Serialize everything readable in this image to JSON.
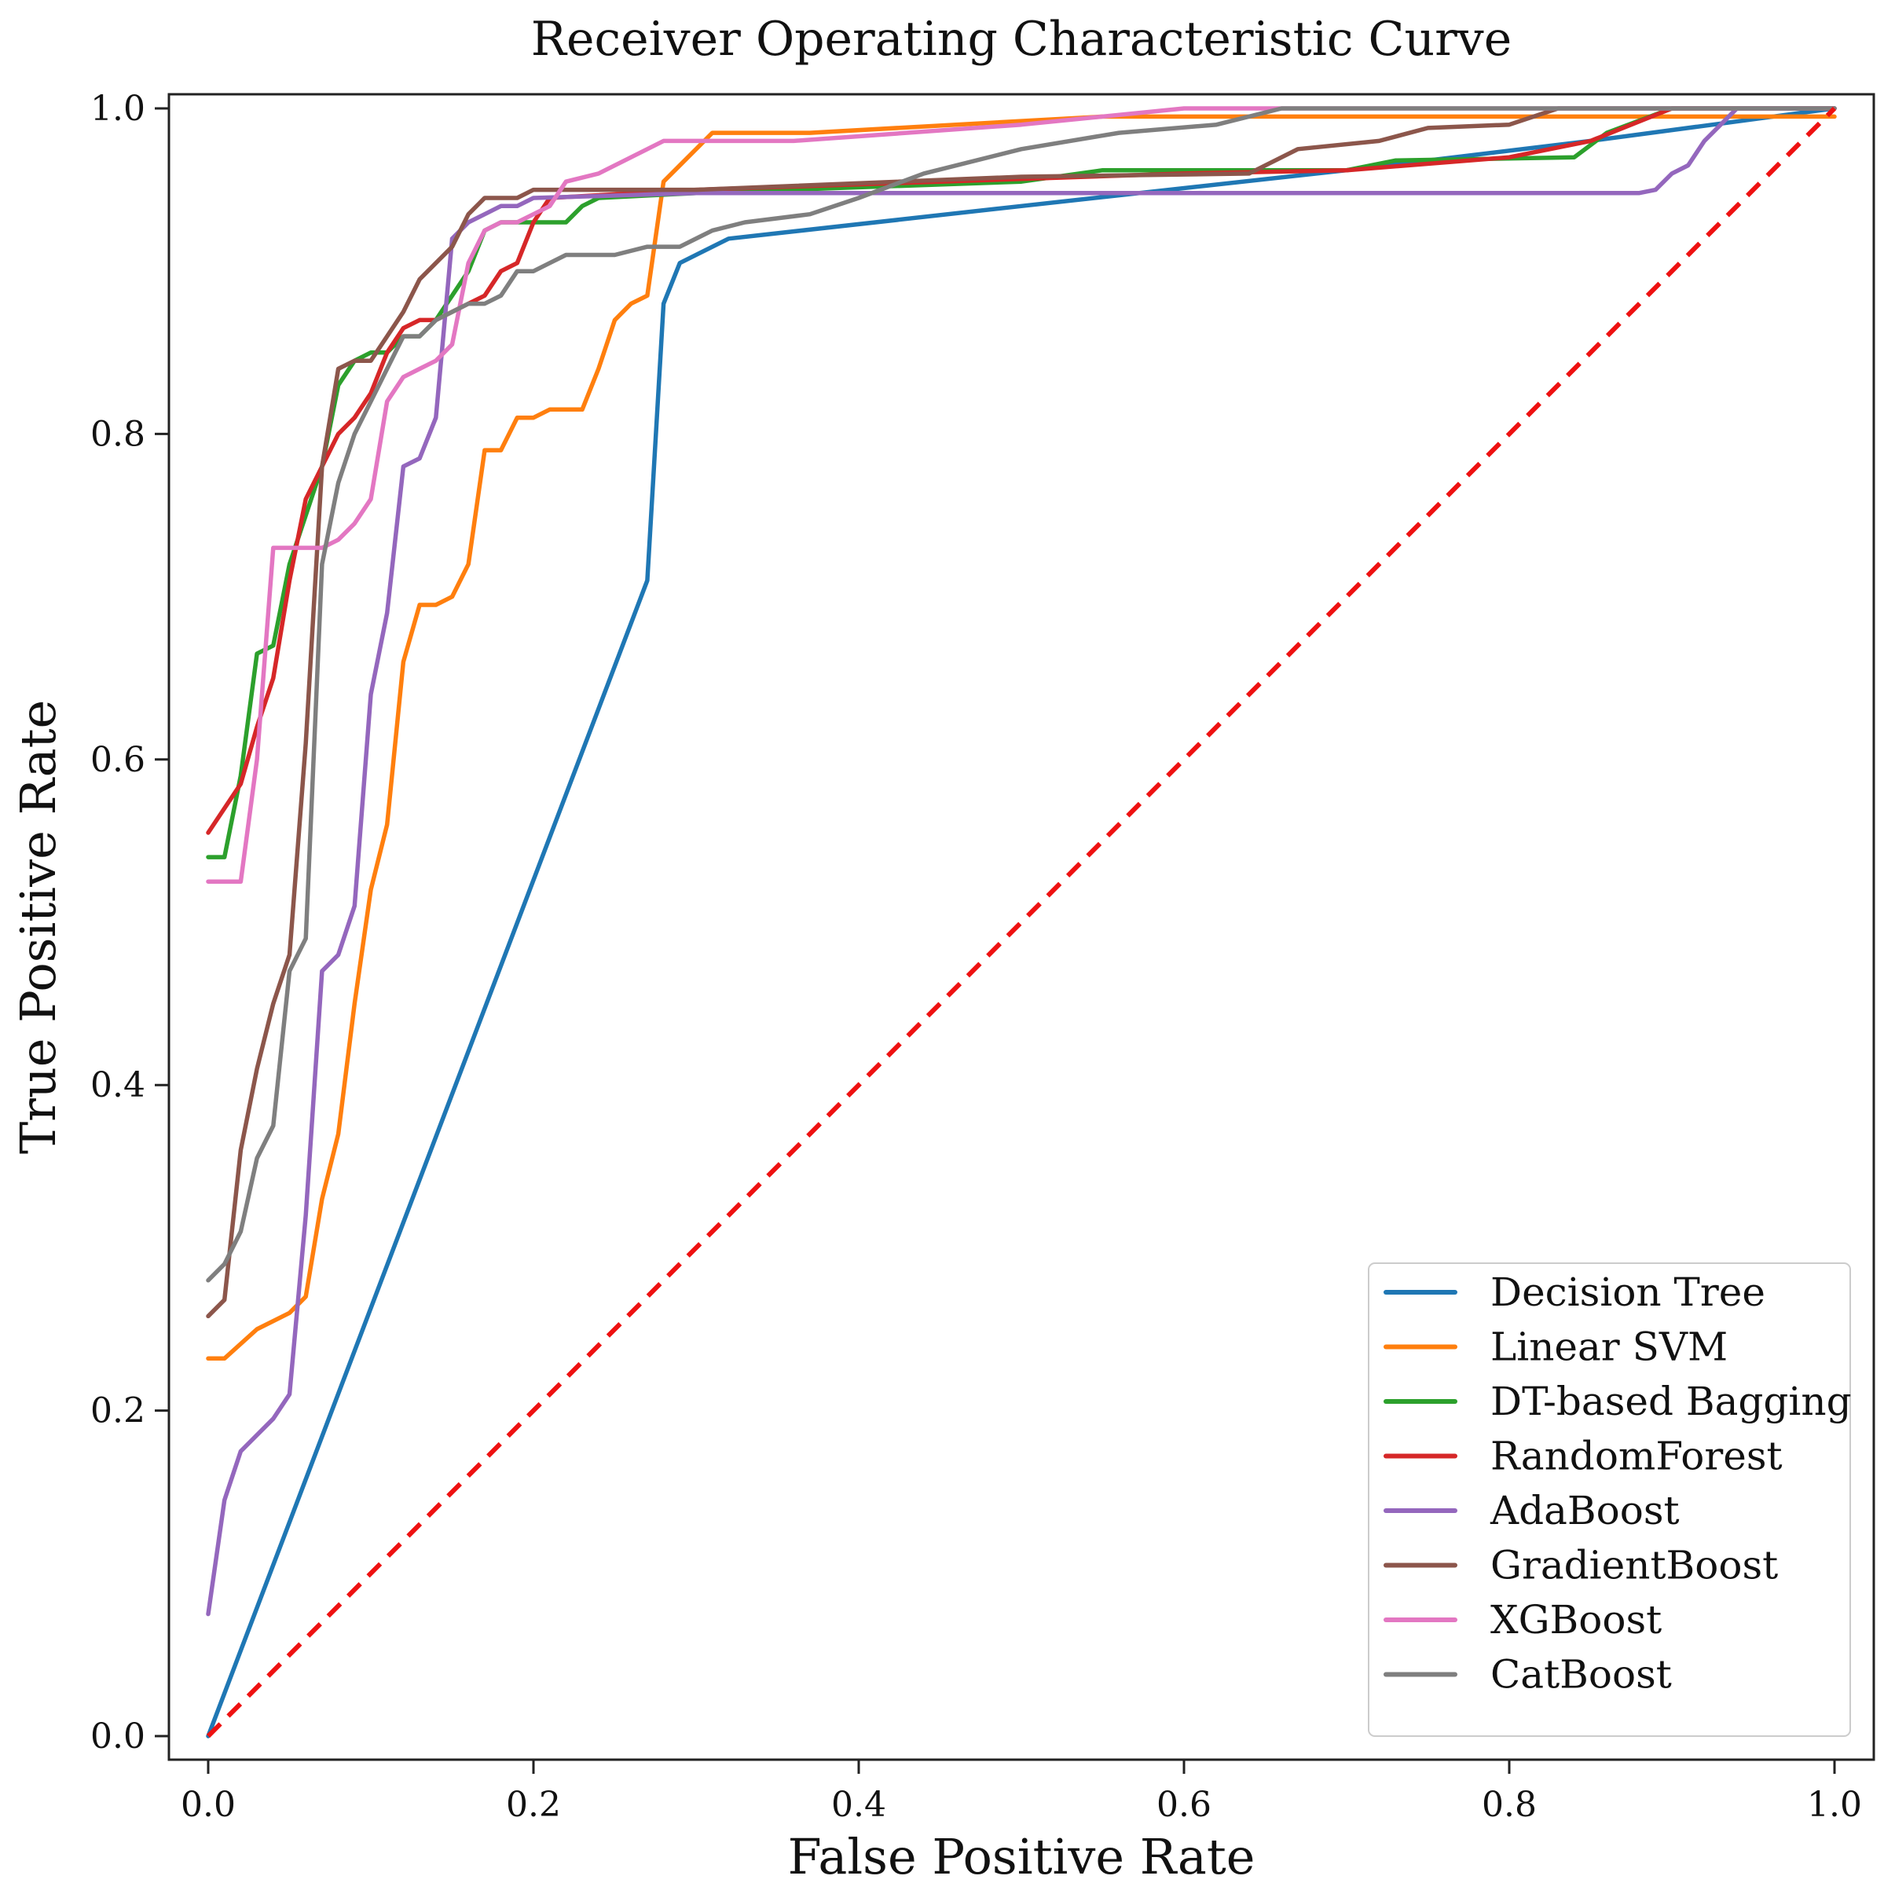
{
  "chart_data": {
    "type": "line",
    "title": "Receiver Operating Characteristic Curve",
    "xlabel": "False Positive Rate",
    "ylabel": "True Positive Rate",
    "xlim": [
      0.0,
      1.0
    ],
    "ylim": [
      0.0,
      1.0
    ],
    "grid": false,
    "legend_position": "bottom-right",
    "x_ticks": [
      0.0,
      0.2,
      0.4,
      0.6,
      0.8,
      1.0
    ],
    "y_ticks": [
      0.0,
      0.2,
      0.4,
      0.6,
      0.8,
      1.0
    ],
    "x_tick_labels": [
      "0.0",
      "0.2",
      "0.4",
      "0.6",
      "0.8",
      "1.0"
    ],
    "y_tick_labels": [
      "0.0",
      "0.2",
      "0.4",
      "0.6",
      "0.8",
      "1.0"
    ],
    "series": [
      {
        "name": "Decision Tree",
        "color": "#1f77b4",
        "x": [
          0.0,
          0.27,
          0.28,
          0.29,
          0.32,
          0.5,
          0.7,
          0.85,
          1.0
        ],
        "y": [
          0.0,
          0.71,
          0.88,
          0.905,
          0.92,
          0.94,
          0.962,
          0.98,
          1.0
        ]
      },
      {
        "name": "Linear SVM",
        "color": "#ff7f0e",
        "x": [
          0.0,
          0.01,
          0.03,
          0.05,
          0.06,
          0.07,
          0.08,
          0.09,
          0.1,
          0.11,
          0.12,
          0.13,
          0.14,
          0.15,
          0.16,
          0.17,
          0.18,
          0.19,
          0.2,
          0.21,
          0.22,
          0.23,
          0.24,
          0.25,
          0.26,
          0.27,
          0.28,
          0.29,
          0.3,
          0.31,
          0.37,
          0.55,
          0.6,
          1.0
        ],
        "y": [
          0.232,
          0.232,
          0.25,
          0.26,
          0.27,
          0.33,
          0.37,
          0.45,
          0.52,
          0.56,
          0.66,
          0.695,
          0.695,
          0.7,
          0.72,
          0.79,
          0.79,
          0.81,
          0.81,
          0.815,
          0.815,
          0.815,
          0.84,
          0.87,
          0.88,
          0.885,
          0.955,
          0.965,
          0.975,
          0.985,
          0.985,
          0.995,
          0.995,
          0.995
        ]
      },
      {
        "name": "DT-based Bagging",
        "color": "#2ca02c",
        "x": [
          0.0,
          0.01,
          0.02,
          0.03,
          0.04,
          0.05,
          0.06,
          0.07,
          0.08,
          0.09,
          0.1,
          0.11,
          0.12,
          0.13,
          0.14,
          0.15,
          0.16,
          0.17,
          0.18,
          0.19,
          0.2,
          0.21,
          0.22,
          0.23,
          0.24,
          0.3,
          0.5,
          0.55,
          0.7,
          0.73,
          0.84,
          0.86,
          0.9,
          1.0
        ],
        "y": [
          0.54,
          0.54,
          0.59,
          0.665,
          0.67,
          0.72,
          0.75,
          0.78,
          0.83,
          0.845,
          0.85,
          0.85,
          0.86,
          0.86,
          0.87,
          0.885,
          0.9,
          0.925,
          0.93,
          0.93,
          0.93,
          0.93,
          0.93,
          0.94,
          0.945,
          0.948,
          0.955,
          0.962,
          0.962,
          0.968,
          0.97,
          0.985,
          1.0,
          1.0
        ]
      },
      {
        "name": "RandomForest",
        "color": "#d62728",
        "x": [
          0.0,
          0.02,
          0.03,
          0.04,
          0.05,
          0.06,
          0.07,
          0.08,
          0.09,
          0.1,
          0.11,
          0.12,
          0.13,
          0.14,
          0.15,
          0.16,
          0.17,
          0.18,
          0.19,
          0.2,
          0.21,
          0.3,
          0.45,
          0.6,
          0.7,
          0.8,
          0.85,
          0.9,
          1.0
        ],
        "y": [
          0.555,
          0.585,
          0.62,
          0.65,
          0.71,
          0.76,
          0.78,
          0.8,
          0.81,
          0.825,
          0.85,
          0.865,
          0.87,
          0.87,
          0.875,
          0.88,
          0.885,
          0.9,
          0.905,
          0.93,
          0.945,
          0.95,
          0.955,
          0.96,
          0.962,
          0.97,
          0.98,
          1.0,
          1.0
        ]
      },
      {
        "name": "AdaBoost",
        "color": "#9467bd",
        "x": [
          0.0,
          0.01,
          0.02,
          0.03,
          0.04,
          0.05,
          0.06,
          0.07,
          0.08,
          0.09,
          0.1,
          0.11,
          0.12,
          0.13,
          0.14,
          0.15,
          0.16,
          0.17,
          0.18,
          0.19,
          0.2,
          0.3,
          0.6,
          0.8,
          0.88,
          0.89,
          0.9,
          0.91,
          0.92,
          0.93,
          0.94,
          1.0
        ],
        "y": [
          0.075,
          0.145,
          0.175,
          0.185,
          0.195,
          0.21,
          0.32,
          0.47,
          0.48,
          0.51,
          0.64,
          0.69,
          0.78,
          0.785,
          0.81,
          0.92,
          0.93,
          0.935,
          0.94,
          0.94,
          0.945,
          0.948,
          0.948,
          0.948,
          0.948,
          0.95,
          0.96,
          0.965,
          0.98,
          0.99,
          1.0,
          1.0
        ]
      },
      {
        "name": "GradientBoost",
        "color": "#8c564b",
        "x": [
          0.0,
          0.01,
          0.02,
          0.03,
          0.04,
          0.05,
          0.06,
          0.07,
          0.08,
          0.09,
          0.1,
          0.11,
          0.12,
          0.13,
          0.14,
          0.15,
          0.16,
          0.17,
          0.18,
          0.19,
          0.2,
          0.3,
          0.5,
          0.64,
          0.67,
          0.72,
          0.75,
          0.8,
          0.83,
          1.0
        ],
        "y": [
          0.258,
          0.268,
          0.36,
          0.41,
          0.45,
          0.48,
          0.61,
          0.78,
          0.84,
          0.845,
          0.845,
          0.86,
          0.875,
          0.895,
          0.905,
          0.915,
          0.935,
          0.945,
          0.945,
          0.945,
          0.95,
          0.95,
          0.958,
          0.96,
          0.975,
          0.98,
          0.988,
          0.99,
          1.0,
          1.0
        ]
      },
      {
        "name": "XGBoost",
        "color": "#e377c2",
        "x": [
          0.0,
          0.02,
          0.03,
          0.04,
          0.05,
          0.06,
          0.07,
          0.08,
          0.09,
          0.1,
          0.11,
          0.12,
          0.13,
          0.14,
          0.15,
          0.16,
          0.17,
          0.18,
          0.19,
          0.2,
          0.21,
          0.22,
          0.24,
          0.26,
          0.27,
          0.28,
          0.36,
          0.5,
          0.6,
          0.65,
          1.0
        ],
        "y": [
          0.525,
          0.525,
          0.6,
          0.73,
          0.73,
          0.73,
          0.73,
          0.735,
          0.745,
          0.76,
          0.82,
          0.835,
          0.84,
          0.845,
          0.855,
          0.905,
          0.925,
          0.93,
          0.93,
          0.935,
          0.94,
          0.955,
          0.96,
          0.97,
          0.975,
          0.98,
          0.98,
          0.99,
          1.0,
          1.0,
          1.0
        ]
      },
      {
        "name": "CatBoost",
        "color": "#7f7f7f",
        "x": [
          0.0,
          0.01,
          0.02,
          0.03,
          0.04,
          0.05,
          0.06,
          0.07,
          0.08,
          0.09,
          0.1,
          0.11,
          0.12,
          0.13,
          0.14,
          0.15,
          0.16,
          0.17,
          0.18,
          0.19,
          0.2,
          0.21,
          0.22,
          0.25,
          0.27,
          0.29,
          0.31,
          0.33,
          0.37,
          0.4,
          0.44,
          0.5,
          0.56,
          0.62,
          0.66,
          1.0
        ],
        "y": [
          0.28,
          0.29,
          0.31,
          0.355,
          0.375,
          0.47,
          0.49,
          0.72,
          0.77,
          0.8,
          0.82,
          0.84,
          0.86,
          0.86,
          0.87,
          0.875,
          0.88,
          0.88,
          0.885,
          0.9,
          0.9,
          0.905,
          0.91,
          0.91,
          0.915,
          0.915,
          0.925,
          0.93,
          0.935,
          0.945,
          0.96,
          0.975,
          0.985,
          0.99,
          1.0,
          1.0
        ]
      }
    ],
    "reference_line": {
      "x": [
        0.0,
        1.0
      ],
      "y": [
        0.0,
        1.0
      ],
      "color": "#ee1111",
      "style": "dashed"
    }
  }
}
